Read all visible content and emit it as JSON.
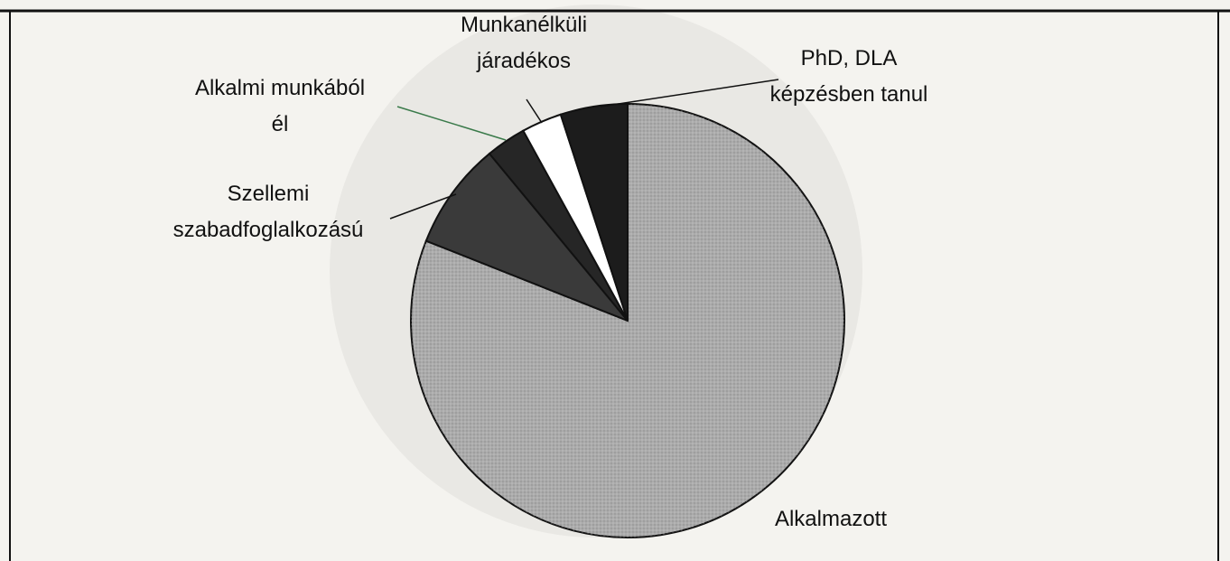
{
  "chart_data": {
    "type": "pie",
    "categories": [
      "Alkalmazott",
      "Szellemi\nszabadfoglalkozású",
      "Alkalmi munkából\nél",
      "Munkanélküli\njáradékos",
      "PhD, DLA\nképzésben tanul"
    ],
    "values": [
      81,
      8,
      3,
      3,
      5
    ],
    "colors": [
      "#ababab",
      "#3a3a3a",
      "#262626",
      "#ffffff",
      "#1c1c1c"
    ],
    "start_angle": 0,
    "direction": "clockwise"
  }
}
